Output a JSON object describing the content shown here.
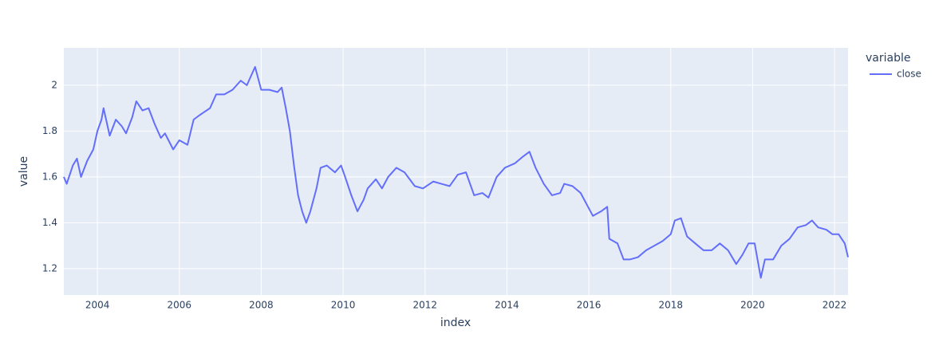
{
  "chart_data": {
    "type": "line",
    "x_label": "index",
    "y_label": "value",
    "legend_title": "variable",
    "xlim": [
      2003.18,
      2022.33
    ],
    "ylim": [
      1.085,
      2.163
    ],
    "xticks": [
      2004,
      2006,
      2008,
      2010,
      2012,
      2014,
      2016,
      2018,
      2020,
      2022
    ],
    "yticks": [
      1.2,
      1.4,
      1.6,
      1.8,
      2
    ],
    "grid": true,
    "legend_position": "right",
    "x": [
      2003.18,
      2003.25,
      2003.4,
      2003.5,
      2003.6,
      2003.75,
      2003.9,
      2004.0,
      2004.1,
      2004.15,
      2004.3,
      2004.45,
      2004.6,
      2004.7,
      2004.85,
      2004.95,
      2005.1,
      2005.25,
      2005.4,
      2005.55,
      2005.65,
      2005.85,
      2006.0,
      2006.2,
      2006.35,
      2006.5,
      2006.75,
      2006.9,
      2007.1,
      2007.3,
      2007.5,
      2007.65,
      2007.85,
      2008.0,
      2008.2,
      2008.4,
      2008.5,
      2008.6,
      2008.7,
      2008.8,
      2008.9,
      2009.0,
      2009.1,
      2009.2,
      2009.35,
      2009.45,
      2009.6,
      2009.8,
      2009.95,
      2010.05,
      2010.2,
      2010.35,
      2010.5,
      2010.6,
      2010.8,
      2010.95,
      2011.1,
      2011.3,
      2011.5,
      2011.75,
      2011.95,
      2012.2,
      2012.4,
      2012.6,
      2012.8,
      2013.0,
      2013.2,
      2013.4,
      2013.55,
      2013.75,
      2013.95,
      2014.2,
      2014.4,
      2014.55,
      2014.7,
      2014.9,
      2015.1,
      2015.3,
      2015.4,
      2015.6,
      2015.8,
      2015.95,
      2016.1,
      2016.3,
      2016.45,
      2016.5,
      2016.7,
      2016.85,
      2017.0,
      2017.2,
      2017.4,
      2017.6,
      2017.8,
      2018.0,
      2018.1,
      2018.25,
      2018.4,
      2018.6,
      2018.8,
      2019.0,
      2019.2,
      2019.4,
      2019.6,
      2019.75,
      2019.9,
      2020.05,
      2020.2,
      2020.3,
      2020.5,
      2020.7,
      2020.9,
      2021.1,
      2021.3,
      2021.45,
      2021.6,
      2021.8,
      2021.95,
      2022.1,
      2022.25,
      2022.33
    ],
    "series": [
      {
        "name": "close",
        "color": "#636efa",
        "values": [
          1.6,
          1.57,
          1.65,
          1.68,
          1.6,
          1.67,
          1.72,
          1.8,
          1.85,
          1.9,
          1.78,
          1.85,
          1.82,
          1.79,
          1.86,
          1.93,
          1.89,
          1.9,
          1.83,
          1.77,
          1.79,
          1.72,
          1.76,
          1.74,
          1.85,
          1.87,
          1.9,
          1.96,
          1.96,
          1.98,
          2.02,
          2.0,
          2.08,
          1.98,
          1.98,
          1.97,
          1.99,
          1.9,
          1.8,
          1.65,
          1.52,
          1.45,
          1.4,
          1.45,
          1.55,
          1.64,
          1.65,
          1.62,
          1.65,
          1.6,
          1.52,
          1.45,
          1.5,
          1.55,
          1.59,
          1.55,
          1.6,
          1.64,
          1.62,
          1.56,
          1.55,
          1.58,
          1.57,
          1.56,
          1.61,
          1.62,
          1.52,
          1.53,
          1.51,
          1.6,
          1.64,
          1.66,
          1.69,
          1.71,
          1.64,
          1.57,
          1.52,
          1.53,
          1.57,
          1.56,
          1.53,
          1.48,
          1.43,
          1.45,
          1.47,
          1.33,
          1.31,
          1.24,
          1.24,
          1.25,
          1.28,
          1.3,
          1.32,
          1.35,
          1.41,
          1.42,
          1.34,
          1.31,
          1.28,
          1.28,
          1.31,
          1.28,
          1.22,
          1.26,
          1.31,
          1.31,
          1.16,
          1.24,
          1.24,
          1.3,
          1.33,
          1.38,
          1.39,
          1.41,
          1.38,
          1.37,
          1.35,
          1.35,
          1.31,
          1.25
        ]
      }
    ]
  }
}
